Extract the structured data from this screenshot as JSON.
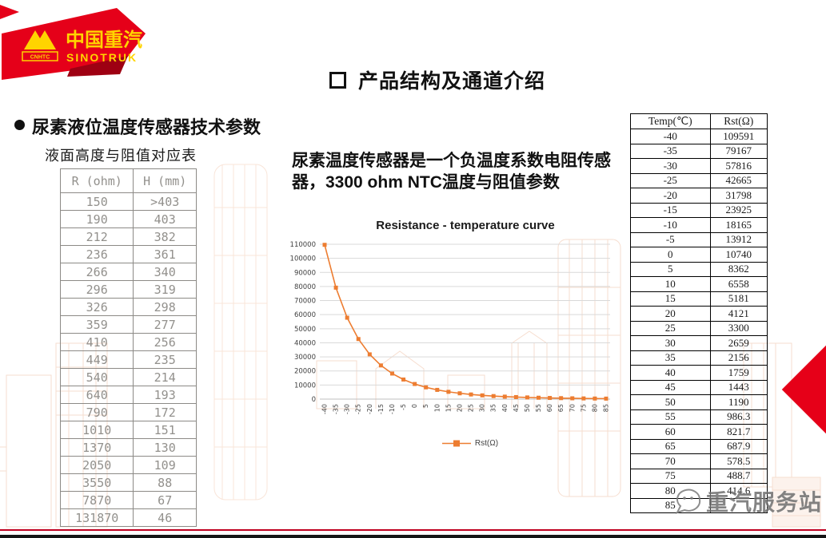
{
  "slide": {
    "title": "产品结构及通道介绍",
    "section_heading": "尿素液位温度传感器技术参数",
    "logo": {
      "brand_cn": "中国重汽",
      "brand_en": "SINOTRUK",
      "emblem": "CNHTC",
      "red": "#e50019",
      "yellow": "#ffd400"
    },
    "watermark_text": "重汽服务站",
    "accent_red": "#e60018",
    "crimson_line_color": "#c00020"
  },
  "ntc_para": {
    "part1": "尿素温度传感器是一个负温度系数电阻传感器，",
    "bold": "3300 ohm NTC",
    "part2": "温度与阻值参数"
  },
  "level_table": {
    "caption": "液面高度与阻值对应表",
    "columns": [
      "R (ohm)",
      "H (mm)"
    ],
    "rows": [
      [
        "150",
        ">403"
      ],
      [
        "190",
        "403"
      ],
      [
        "212",
        "382"
      ],
      [
        "236",
        "361"
      ],
      [
        "266",
        "340"
      ],
      [
        "296",
        "319"
      ],
      [
        "326",
        "298"
      ],
      [
        "359",
        "277"
      ],
      [
        "410",
        "256"
      ],
      [
        "449",
        "235"
      ],
      [
        "540",
        "214"
      ],
      [
        "640",
        "193"
      ],
      [
        "790",
        "172"
      ],
      [
        "1010",
        "151"
      ],
      [
        "1370",
        "130"
      ],
      [
        "2050",
        "109"
      ],
      [
        "3550",
        "88"
      ],
      [
        "7870",
        "67"
      ],
      [
        "131870",
        "46"
      ]
    ]
  },
  "temp_table": {
    "columns": [
      "Temp(℃)",
      "Rst(Ω)"
    ],
    "rows": [
      [
        "-40",
        "109591"
      ],
      [
        "-35",
        "79167"
      ],
      [
        "-30",
        "57816"
      ],
      [
        "-25",
        "42665"
      ],
      [
        "-20",
        "31798"
      ],
      [
        "-15",
        "23925"
      ],
      [
        "-10",
        "18165"
      ],
      [
        "-5",
        "13912"
      ],
      [
        "0",
        "10740"
      ],
      [
        "5",
        "8362"
      ],
      [
        "10",
        "6558"
      ],
      [
        "15",
        "5181"
      ],
      [
        "20",
        "4121"
      ],
      [
        "25",
        "3300"
      ],
      [
        "30",
        "2659"
      ],
      [
        "35",
        "2156"
      ],
      [
        "40",
        "1759"
      ],
      [
        "45",
        "1443"
      ],
      [
        "50",
        "1190"
      ],
      [
        "55",
        "986.3"
      ],
      [
        "60",
        "821.7"
      ],
      [
        "65",
        "687.9"
      ],
      [
        "70",
        "578.5"
      ],
      [
        "75",
        "488.7"
      ],
      [
        "80",
        "414.6"
      ],
      [
        "85",
        ""
      ]
    ]
  },
  "chart_data": {
    "type": "line",
    "title": "Resistance - temperature curve",
    "x": [
      -40,
      -35,
      -30,
      -25,
      -20,
      -15,
      -10,
      -5,
      0,
      5,
      10,
      15,
      20,
      25,
      30,
      35,
      40,
      45,
      50,
      55,
      60,
      65,
      70,
      75,
      80,
      85
    ],
    "series": [
      {
        "name": "Rst(Ω)",
        "values": [
          109591,
          79167,
          57816,
          42665,
          31798,
          23925,
          18165,
          13912,
          10740,
          8362,
          6558,
          5181,
          4121,
          3300,
          2659,
          2156,
          1759,
          1443,
          1190,
          986.3,
          821.7,
          687.9,
          578.5,
          488.7,
          414.6,
          353
        ]
      }
    ],
    "xlabel": "",
    "ylabel": "",
    "ylim": [
      0,
      110000
    ],
    "ytick_step": 10000,
    "grid": true,
    "legend_position": "bottom",
    "marker": "square",
    "color": "#ed7d31"
  }
}
